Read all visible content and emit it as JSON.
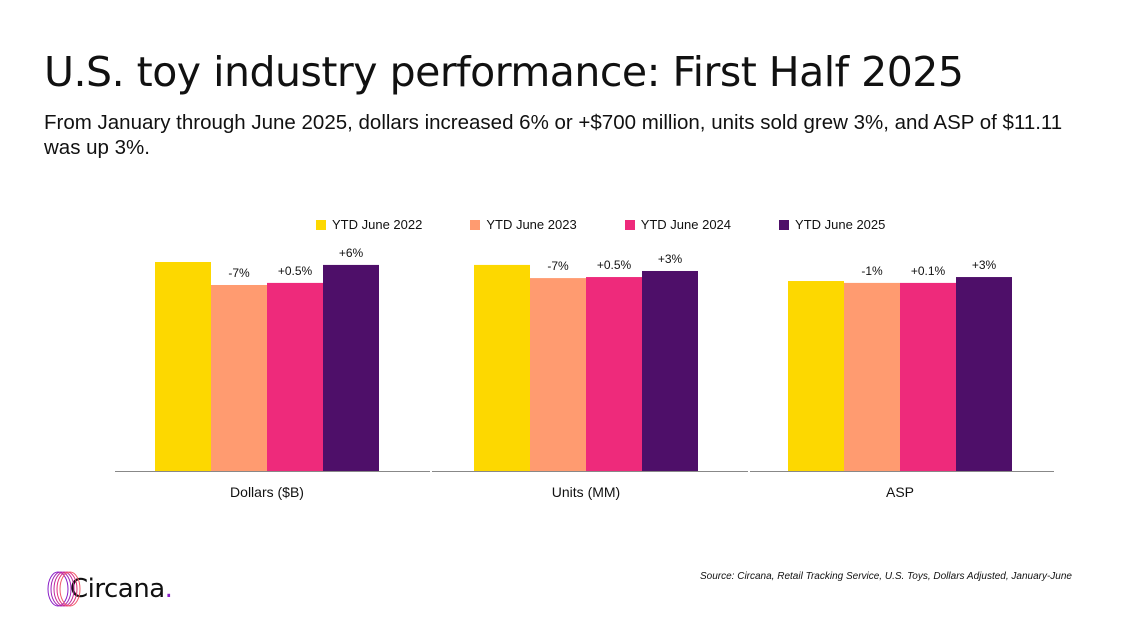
{
  "title": "U.S. toy industry performance: First Half 2025",
  "subtitle": "From January through June 2025, dollars increased 6% or +$700 million, units sold grew 3%, and ASP of $11.11 was up 3%.",
  "source": "Source: Circana, Retail Tracking Service, U.S. Toys, Dollars Adjusted, January-June",
  "logo": {
    "text": "Circana",
    "dot": "."
  },
  "chart_data": {
    "type": "bar",
    "legend_position": "top",
    "grid": false,
    "ylim": [
      0,
      100
    ],
    "value_note": "bar heights relative index (no axis printed)",
    "series": [
      {
        "name": "YTD June 2022",
        "color": "#FDD800"
      },
      {
        "name": "YTD June 2023",
        "color": "#FF9B70"
      },
      {
        "name": "YTD June 2024",
        "color": "#EE2A7B"
      },
      {
        "name": "YTD June 2025",
        "color": "#4E0F69"
      }
    ],
    "categories": [
      {
        "label": "Dollars ($B)",
        "values": [
          100,
          89,
          90,
          98.6
        ],
        "labels": [
          "",
          "-7%",
          "+0.5%",
          "+6%"
        ]
      },
      {
        "label": "Units (MM)",
        "values": [
          98.6,
          92.3,
          92.8,
          95.7
        ],
        "labels": [
          "",
          "-7%",
          "+0.5%",
          "+3%"
        ]
      },
      {
        "label": "ASP",
        "values": [
          90.9,
          90,
          90,
          92.8
        ],
        "labels": [
          "",
          "-1%",
          "+0.1%",
          "+3%"
        ]
      }
    ]
  }
}
